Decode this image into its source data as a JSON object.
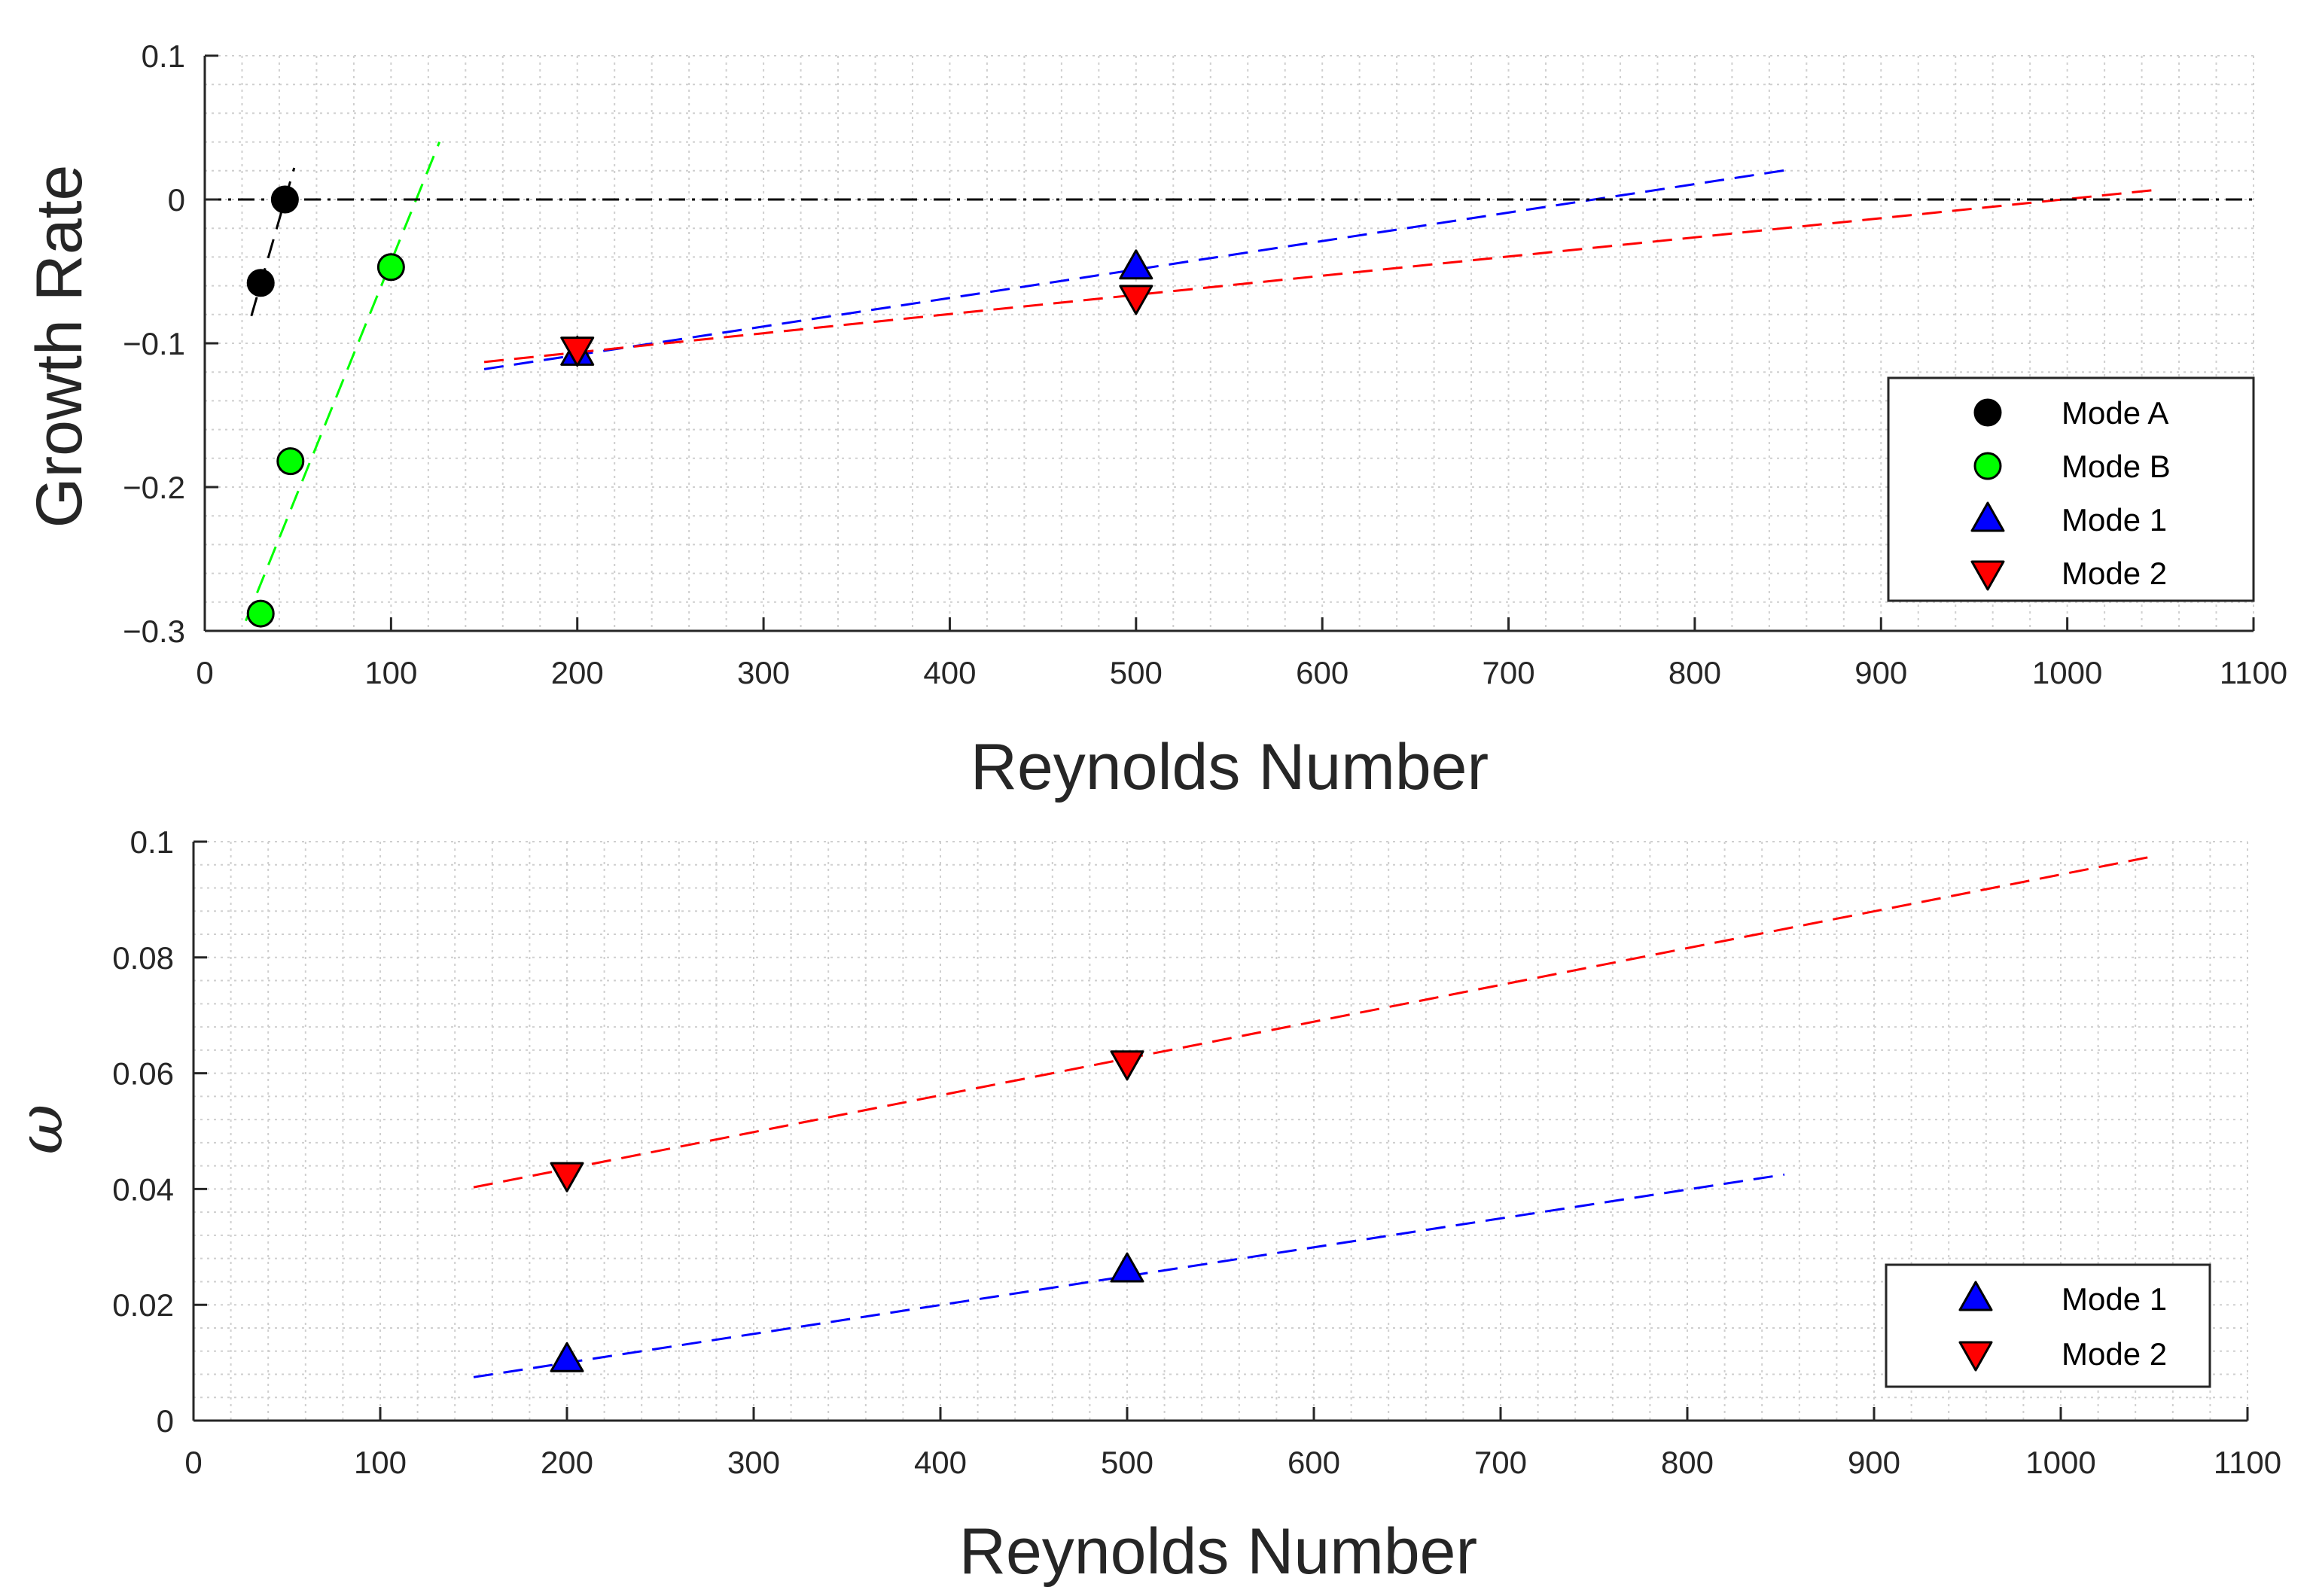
{
  "chart_data": [
    {
      "type": "scatter",
      "id": "growth",
      "xlabel": "Reynolds Number",
      "ylabel": "Growth Rate",
      "xlim": [
        0,
        1100
      ],
      "ylim": [
        -0.3,
        0.1
      ],
      "xticks": [
        0,
        100,
        200,
        300,
        400,
        500,
        600,
        700,
        800,
        900,
        1000,
        1100
      ],
      "xtick_labels": [
        "0",
        "100",
        "200",
        "300",
        "400",
        "500",
        "600",
        "700",
        "800",
        "900",
        "1000",
        "1100"
      ],
      "yticks": [
        -0.3,
        -0.2,
        -0.1,
        0,
        0.1
      ],
      "ytick_labels": [
        "−0.3",
        "−0.2",
        "−0.1",
        "0",
        "0.1"
      ],
      "grid": "on (major and minor, dotted)",
      "legend_position": "bottom-right",
      "reference_line": {
        "y": 0,
        "style": "dash-dot",
        "color": "#000000"
      },
      "series": [
        {
          "name": "Mode A",
          "marker": "circle",
          "color": "#000000",
          "x": [
            30,
            43
          ],
          "y": [
            -0.058,
            0.0
          ],
          "fit": {
            "x": [
              25,
              48
            ],
            "y": [
              -0.081,
              0.022
            ],
            "color": "#000000"
          }
        },
        {
          "name": "Mode B",
          "marker": "circle",
          "color": "#00ff00",
          "x": [
            30,
            46,
            100
          ],
          "y": [
            -0.288,
            -0.182,
            -0.047
          ],
          "fit": {
            "x": [
              22,
              126
            ],
            "y": [
              -0.293,
              0.04
            ],
            "color": "#00ff00"
          }
        },
        {
          "name": "Mode 1",
          "marker": "triangle-up",
          "color": "#0000ff",
          "x": [
            200,
            500
          ],
          "y": [
            -0.107,
            -0.047
          ],
          "fit": {
            "x": [
              150,
              852
            ],
            "y": [
              -0.118,
              0.021
            ],
            "color": "#0000ff"
          }
        },
        {
          "name": "Mode 2",
          "marker": "triangle-down",
          "color": "#ff0000",
          "x": [
            200,
            500
          ],
          "y": [
            -0.104,
            -0.068
          ],
          "fit": {
            "x": [
              150,
              1050
            ],
            "y": [
              -0.113,
              0.007
            ],
            "color": "#ff0000"
          }
        }
      ]
    },
    {
      "type": "scatter",
      "id": "omega",
      "xlabel": "Reynolds Number",
      "ylabel": "ω",
      "xlim": [
        0,
        1100
      ],
      "ylim": [
        0,
        0.1
      ],
      "xticks": [
        0,
        100,
        200,
        300,
        400,
        500,
        600,
        700,
        800,
        900,
        1000,
        1100
      ],
      "xtick_labels": [
        "0",
        "100",
        "200",
        "300",
        "400",
        "500",
        "600",
        "700",
        "800",
        "900",
        "1000",
        "1100"
      ],
      "yticks": [
        0,
        0.02,
        0.04,
        0.06,
        0.08,
        0.1
      ],
      "ytick_labels": [
        "0",
        "0.02",
        "0.04",
        "0.06",
        "0.08",
        "0.1"
      ],
      "grid": "on (major and minor, dotted)",
      "legend_position": "bottom-right",
      "series": [
        {
          "name": "Mode 1",
          "marker": "triangle-up",
          "color": "#0000ff",
          "x": [
            200,
            500
          ],
          "y": [
            0.0105,
            0.026
          ],
          "fit": {
            "x": [
              150,
              852
            ],
            "y": [
              0.0075,
              0.0425
            ],
            "color": "#0000ff"
          }
        },
        {
          "name": "Mode 2",
          "marker": "triangle-down",
          "color": "#ff0000",
          "x": [
            200,
            500
          ],
          "y": [
            0.0425,
            0.0618
          ],
          "fit": {
            "x": [
              150,
              1050
            ],
            "y": [
              0.0403,
              0.0975
            ],
            "color": "#ff0000"
          }
        }
      ]
    }
  ]
}
